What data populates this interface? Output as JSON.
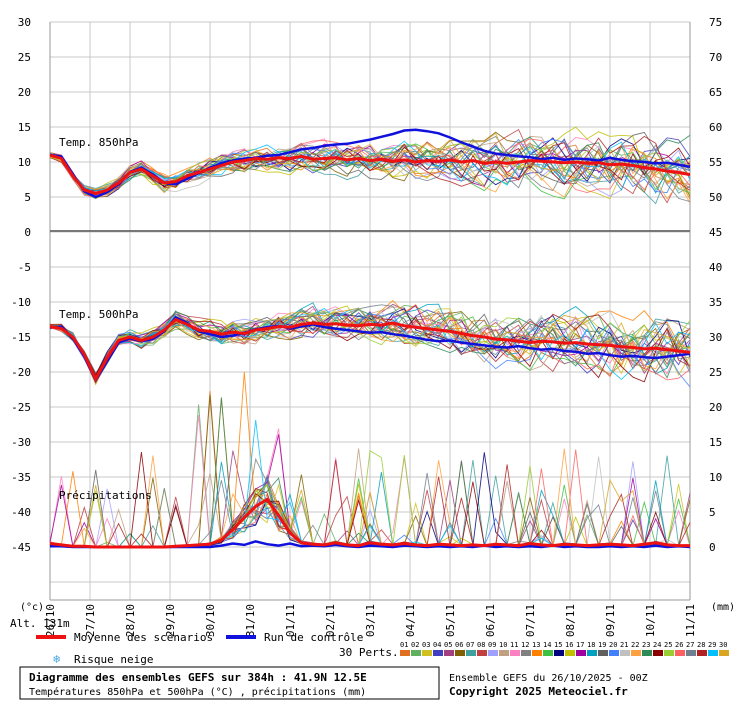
{
  "chart_data": {
    "type": "line",
    "panels": [
      {
        "label": "Temp. 850hPa",
        "left_axis": [
          30,
          25,
          20,
          15,
          10,
          5,
          0
        ],
        "right_axis": [
          75,
          70,
          65,
          60,
          55,
          50,
          45
        ],
        "ylim": [
          0,
          30
        ],
        "mean": [
          11,
          10.5,
          8,
          6,
          5.5,
          6,
          7,
          8.5,
          9,
          8,
          7,
          7.2,
          8,
          8.5,
          9,
          9.5,
          10,
          10.2,
          10.5,
          10.4,
          10.6,
          10.5,
          10.8,
          10.4,
          10.5,
          10.6,
          10.3,
          10.5,
          10.2,
          10.4,
          10.1,
          10.3,
          10,
          10.2,
          10.1,
          10.3,
          10,
          10.2,
          9.8,
          10,
          9.8,
          10,
          10.2,
          10.1,
          10,
          9.9,
          10,
          9.8,
          9.9,
          9.6,
          9.7,
          9.5,
          9.2,
          9,
          8.7,
          8.5,
          8.2
        ],
        "control": [
          11,
          10.8,
          8.3,
          5.8,
          5,
          5.7,
          6.8,
          8.6,
          9.2,
          8.2,
          7,
          6.8,
          7.6,
          8.4,
          9.2,
          9.8,
          10.2,
          10.5,
          10.6,
          10.9,
          11,
          11.4,
          11.8,
          12,
          12.3,
          12.5,
          12.6,
          12.9,
          13.2,
          13.6,
          14,
          14.5,
          14.6,
          14.4,
          14.1,
          13.5,
          12.8,
          12.2,
          11.6,
          11.2,
          11,
          10.8,
          10.7,
          10.4,
          10.6,
          10.3,
          10.5,
          10.4,
          10.2,
          10.6,
          10.3,
          10.1,
          10,
          9.8,
          9.9,
          9.6,
          9.3
        ]
      },
      {
        "label": "Temp. 500hPa",
        "left_axis": [
          -5,
          -10,
          -15,
          -20,
          -25,
          -30,
          -35,
          -40,
          -45
        ],
        "right_axis": [
          40,
          35,
          30,
          25,
          20,
          15,
          10,
          5,
          0
        ],
        "ylim": [
          -45,
          -5
        ],
        "mean": [
          -13.5,
          -13.8,
          -15,
          -17.5,
          -21,
          -18,
          -15.5,
          -15,
          -15.5,
          -15,
          -14,
          -12.5,
          -13.2,
          -14,
          -14.2,
          -14.6,
          -14.3,
          -14.5,
          -14,
          -13.8,
          -13.5,
          -13.6,
          -13.2,
          -13,
          -13.2,
          -13.1,
          -13.3,
          -13.4,
          -13.2,
          -13.3,
          -13,
          -13.4,
          -13.6,
          -13.8,
          -14,
          -14.2,
          -14.5,
          -14.8,
          -15,
          -15.3,
          -15.4,
          -15.6,
          -15.8,
          -15.6,
          -15.7,
          -15.9,
          -15.8,
          -16,
          -16.1,
          -16.2,
          -16.4,
          -16.5,
          -16.7,
          -16.6,
          -16.8,
          -17,
          -17.2
        ],
        "control": [
          -13.6,
          -13.5,
          -15.2,
          -17.8,
          -21.2,
          -18.5,
          -15.8,
          -15.2,
          -15.6,
          -15.3,
          -14.2,
          -12.2,
          -13,
          -14.2,
          -14.6,
          -15,
          -14.8,
          -14.4,
          -13.9,
          -13.6,
          -13.4,
          -13.8,
          -13.5,
          -13.2,
          -13.6,
          -13.8,
          -14,
          -14.2,
          -14.4,
          -14.3,
          -14.6,
          -14.8,
          -15.1,
          -15.4,
          -15.6,
          -15.5,
          -15.8,
          -16,
          -16.2,
          -16.4,
          -16.5,
          -16.3,
          -16.6,
          -16.8,
          -16.7,
          -17,
          -17.1,
          -17.4,
          -17.3,
          -17.6,
          -17.8,
          -17.7,
          -17.9,
          -18,
          -17.8,
          -17.6,
          -17.4
        ]
      },
      {
        "label": "Précipitations",
        "right_axis": [
          25,
          20,
          15,
          10,
          5,
          0
        ],
        "ylim": [
          0,
          25
        ],
        "mean": [
          0.5,
          0.3,
          0.1,
          0.1,
          0,
          0,
          0,
          0,
          0,
          0,
          0,
          0.1,
          0.2,
          0.3,
          0.4,
          1,
          2.5,
          4.2,
          5.8,
          6.8,
          4.5,
          2,
          0.6,
          0.4,
          0.3,
          0.6,
          0.3,
          0.2,
          0.6,
          0.4,
          0.3,
          0.5,
          0.3,
          0.2,
          0.4,
          0.3,
          0.2,
          0.3,
          0.2,
          0.4,
          0.3,
          0.2,
          0.5,
          0.3,
          0.2,
          0.4,
          0.3,
          0.2,
          0.3,
          0.4,
          0.3,
          0.2,
          0.4,
          0.6,
          0.3,
          0.2,
          0.2
        ],
        "control": [
          0.1,
          0.1,
          0,
          0,
          0,
          0,
          0,
          0,
          0,
          0,
          0,
          0,
          0,
          0,
          0,
          0.2,
          0.5,
          0.3,
          0.8,
          0.4,
          0.2,
          0.5,
          0.1,
          0.2,
          0.1,
          0.3,
          0.1,
          0,
          0.2,
          0.1,
          0,
          0.2,
          0.1,
          0,
          0.1,
          0,
          0.1,
          0,
          0.2,
          0,
          0.1,
          0,
          0.1,
          0,
          0.2,
          0,
          0.1,
          0,
          0,
          0.1,
          0,
          0.1,
          0,
          0.2,
          0,
          0.1,
          0
        ]
      }
    ],
    "x_labels": [
      "26/10",
      "27/10",
      "28/10",
      "29/10",
      "30/10",
      "31/10",
      "01/11",
      "02/11",
      "03/11",
      "04/11",
      "05/11",
      "06/11",
      "07/11",
      "08/11",
      "09/11",
      "10/11",
      "11/11"
    ],
    "left_unit": "(°c)",
    "right_unit": "(mm)",
    "altitude": "Alt. 131m",
    "member_count_label": "30 Perts.",
    "member_numbers": [
      "01",
      "02",
      "03",
      "04",
      "05",
      "06",
      "07",
      "08",
      "09",
      "10",
      "11",
      "12",
      "13",
      "14",
      "15",
      "16",
      "17",
      "18",
      "19",
      "20",
      "21",
      "22",
      "23",
      "24",
      "25",
      "26",
      "27",
      "28",
      "29",
      "30"
    ],
    "member_colors": [
      "#e07020",
      "#60b060",
      "#d0c020",
      "#4040c0",
      "#a04080",
      "#806000",
      "#40a0a0",
      "#c04040",
      "#a0a0ff",
      "#c0a080",
      "#ff80c0",
      "#808080",
      "#ff8000",
      "#40c040",
      "#000080",
      "#c0c000",
      "#a000a0",
      "#00a0c0",
      "#606060",
      "#4080ff",
      "#c0c0c0",
      "#ffa040",
      "#2e8b57",
      "#8b0000",
      "#9acd32",
      "#ff6060",
      "#708090",
      "#b22222",
      "#00bfff",
      "#daa520"
    ],
    "colors": {
      "mean": "#ee1111",
      "control": "#1111dd",
      "axis": "#999999",
      "zero_line": "#777777"
    }
  },
  "legend": {
    "mean_label": "Moyenne des scénarios",
    "control_label": "Run de contrôle",
    "snow_label": "Risque neige",
    "snow_icon": "snowflake-icon"
  },
  "footer": {
    "title": "Diagramme des ensembles GEFS sur 384h : 41.9N 12.5E",
    "subtitle": "Températures 850hPa et 500hPa (°C) , précipitations (mm)",
    "run": "Ensemble GEFS du 26/10/2025 - 00Z",
    "copyright": "Copyright 2025 Meteociel.fr"
  }
}
